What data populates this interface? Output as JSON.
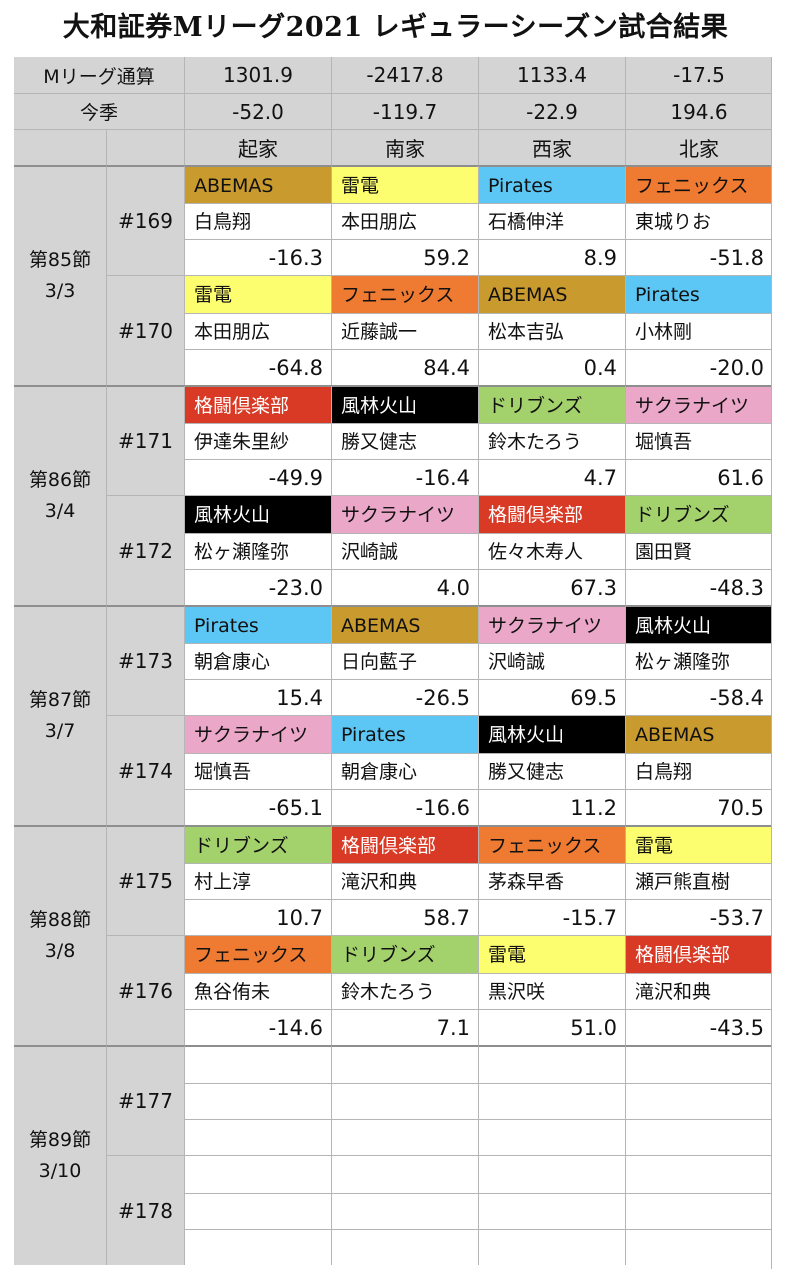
{
  "title": "大和証券Mリーグ2021 レギュラーシーズン試合結果",
  "header": {
    "total_label": "Mリーグ通算",
    "season_label": "今季",
    "totals": [
      "1301.9",
      "-2417.8",
      "1133.4",
      "-17.5"
    ],
    "season": [
      "-52.0",
      "-119.7",
      "-22.9",
      "194.6"
    ],
    "seats": [
      "起家",
      "南家",
      "西家",
      "北家"
    ]
  },
  "team_colors": {
    "ABEMAS": "#c99a2e",
    "雷電": "#fdfd70",
    "Pirates": "#5cc6f5",
    "フェニックス": "#ef7a31",
    "格闘倶楽部": "#d83a25",
    "風林火山": "#000000",
    "ドリブンズ": "#a3d16b",
    "サクラナイツ": "#eba7c8"
  },
  "dark_teams": [
    "格闘倶楽部",
    "風林火山"
  ],
  "groups": [
    {
      "label": "第85節",
      "date": "3/3",
      "games": [
        {
          "no": "#169",
          "entries": [
            {
              "team": "ABEMAS",
              "player": "白鳥翔",
              "score": "-16.3"
            },
            {
              "team": "雷電",
              "player": "本田朋広",
              "score": "59.2"
            },
            {
              "team": "Pirates",
              "player": "石橋伸洋",
              "score": "8.9"
            },
            {
              "team": "フェニックス",
              "player": "東城りお",
              "score": "-51.8"
            }
          ]
        },
        {
          "no": "#170",
          "entries": [
            {
              "team": "雷電",
              "player": "本田朋広",
              "score": "-64.8"
            },
            {
              "team": "フェニックス",
              "player": "近藤誠一",
              "score": "84.4"
            },
            {
              "team": "ABEMAS",
              "player": "松本吉弘",
              "score": "0.4"
            },
            {
              "team": "Pirates",
              "player": "小林剛",
              "score": "-20.0"
            }
          ]
        }
      ]
    },
    {
      "label": "第86節",
      "date": "3/4",
      "games": [
        {
          "no": "#171",
          "entries": [
            {
              "team": "格闘倶楽部",
              "player": "伊達朱里紗",
              "score": "-49.9"
            },
            {
              "team": "風林火山",
              "player": "勝又健志",
              "score": "-16.4"
            },
            {
              "team": "ドリブンズ",
              "player": "鈴木たろう",
              "score": "4.7"
            },
            {
              "team": "サクラナイツ",
              "player": "堀慎吾",
              "score": "61.6"
            }
          ]
        },
        {
          "no": "#172",
          "entries": [
            {
              "team": "風林火山",
              "player": "松ヶ瀬隆弥",
              "score": "-23.0"
            },
            {
              "team": "サクラナイツ",
              "player": "沢崎誠",
              "score": "4.0"
            },
            {
              "team": "格闘倶楽部",
              "player": "佐々木寿人",
              "score": "67.3"
            },
            {
              "team": "ドリブンズ",
              "player": "園田賢",
              "score": "-48.3"
            }
          ]
        }
      ]
    },
    {
      "label": "第87節",
      "date": "3/7",
      "games": [
        {
          "no": "#173",
          "entries": [
            {
              "team": "Pirates",
              "player": "朝倉康心",
              "score": "15.4"
            },
            {
              "team": "ABEMAS",
              "player": "日向藍子",
              "score": "-26.5"
            },
            {
              "team": "サクラナイツ",
              "player": "沢崎誠",
              "score": "69.5"
            },
            {
              "team": "風林火山",
              "player": "松ヶ瀬隆弥",
              "score": "-58.4"
            }
          ]
        },
        {
          "no": "#174",
          "entries": [
            {
              "team": "サクラナイツ",
              "player": "堀慎吾",
              "score": "-65.1"
            },
            {
              "team": "Pirates",
              "player": "朝倉康心",
              "score": "-16.6"
            },
            {
              "team": "風林火山",
              "player": "勝又健志",
              "score": "11.2"
            },
            {
              "team": "ABEMAS",
              "player": "白鳥翔",
              "score": "70.5"
            }
          ]
        }
      ]
    },
    {
      "label": "第88節",
      "date": "3/8",
      "games": [
        {
          "no": "#175",
          "entries": [
            {
              "team": "ドリブンズ",
              "player": "村上淳",
              "score": "10.7"
            },
            {
              "team": "格闘倶楽部",
              "player": "滝沢和典",
              "score": "58.7"
            },
            {
              "team": "フェニックス",
              "player": "茅森早香",
              "score": "-15.7"
            },
            {
              "team": "雷電",
              "player": "瀬戸熊直樹",
              "score": "-53.7"
            }
          ]
        },
        {
          "no": "#176",
          "entries": [
            {
              "team": "フェニックス",
              "player": "魚谷侑未",
              "score": "-14.6"
            },
            {
              "team": "ドリブンズ",
              "player": "鈴木たろう",
              "score": "7.1"
            },
            {
              "team": "雷電",
              "player": "黒沢咲",
              "score": "51.0"
            },
            {
              "team": "格闘倶楽部",
              "player": "滝沢和典",
              "score": "-43.5"
            }
          ]
        }
      ]
    },
    {
      "label": "第89節",
      "date": "3/10",
      "games": [
        {
          "no": "#177",
          "entries": [
            {
              "team": "",
              "player": "",
              "score": ""
            },
            {
              "team": "",
              "player": "",
              "score": ""
            },
            {
              "team": "",
              "player": "",
              "score": ""
            },
            {
              "team": "",
              "player": "",
              "score": ""
            }
          ]
        },
        {
          "no": "#178",
          "entries": [
            {
              "team": "",
              "player": "",
              "score": ""
            },
            {
              "team": "",
              "player": "",
              "score": ""
            },
            {
              "team": "",
              "player": "",
              "score": ""
            },
            {
              "team": "",
              "player": "",
              "score": ""
            }
          ]
        }
      ]
    }
  ]
}
